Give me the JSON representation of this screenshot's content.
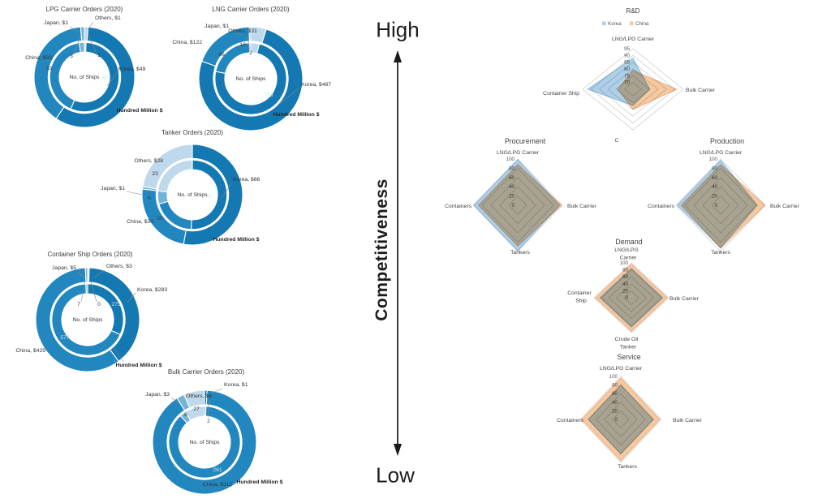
{
  "annotations": {
    "high": "High",
    "low": "Low",
    "competitiveness": "Competitiveness"
  },
  "colors": {
    "korea_sector": "#1478b2",
    "china_sector": "#2387bf",
    "japan_sector": "#74b3d8",
    "others_sector": "#bfd8eb",
    "radar_korea": "#aecfe8",
    "radar_china": "#f6c8a0",
    "arrow": "#1a1a1a"
  },
  "chart_data": [
    {
      "type": "donut",
      "id": "lpg",
      "title": "LPG Carrier Orders (2020)",
      "center_label": "No. of Ships",
      "unit_label": "Hundred Million $",
      "rings": [
        "outer = Hundred Million $",
        "inner = No. of Ships"
      ],
      "segments": [
        {
          "name": "Others",
          "label": "Others, $1",
          "hundred_million_usd": 1,
          "ships": 1
        },
        {
          "name": "Korea",
          "label": "Korea, $49",
          "hundred_million_usd": 49,
          "ships": 69
        },
        {
          "name": "China",
          "label": "China, $33",
          "hundred_million_usd": 33,
          "ships": 51
        },
        {
          "name": "Japan",
          "label": "Japan, $1",
          "hundred_million_usd": 1,
          "ships": 3
        }
      ]
    },
    {
      "type": "donut",
      "id": "lng",
      "title": "LNG Carrier Orders (2020)",
      "center_label": "No. of Ships",
      "unit_label": "Hundred Million $",
      "rings": [
        "outer = Hundred Million $",
        "inner = No. of Ships"
      ],
      "segments": [
        {
          "name": "Others",
          "label": "Others, $31",
          "hundred_million_usd": 31,
          "ships": 12
        },
        {
          "name": "Korea",
          "label": "Korea, $487",
          "hundred_million_usd": 487,
          "ships": 233
        },
        {
          "name": "China",
          "label": "China, $122",
          "hundred_million_usd": 122,
          "ships": 66
        },
        {
          "name": "Japan",
          "label": "Japan, $1",
          "hundred_million_usd": 1,
          "ships": 2
        }
      ]
    },
    {
      "type": "donut",
      "id": "tanker",
      "title": "Tanker Orders (2020)",
      "center_label": "No. of Ships",
      "unit_label": "Hundred Million $",
      "rings": [
        "outer = Hundred Million $",
        "inner = No. of Ships"
      ],
      "segments": [
        {
          "name": "Korea",
          "label": "Korea, $66",
          "hundred_million_usd": 66,
          "ships": 50
        },
        {
          "name": "China",
          "label": "China, $30",
          "hundred_million_usd": 30,
          "ships": 20
        },
        {
          "name": "Japan",
          "label": "Japan, $1",
          "hundred_million_usd": 1,
          "ships": 6
        },
        {
          "name": "Others",
          "label": "Others, $28",
          "hundred_million_usd": 28,
          "ships": 23
        }
      ]
    },
    {
      "type": "donut",
      "id": "container",
      "title": "Container Ship Orders (2020)",
      "center_label": "No. of Ships",
      "unit_label": "Hundred Million $",
      "rings": [
        "outer = Hundred Million $",
        "inner = No. of Ships"
      ],
      "segments": [
        {
          "name": "Others",
          "label": "Others, $3",
          "hundred_million_usd": 3,
          "ships": 0
        },
        {
          "name": "Korea",
          "label": "Korea, $283",
          "hundred_million_usd": 283,
          "ships": 273
        },
        {
          "name": "China",
          "label": "China, $429",
          "hundred_million_usd": 429,
          "ships": 577
        },
        {
          "name": "Japan",
          "label": "Japan, $5",
          "hundred_million_usd": 5,
          "ships": 7
        }
      ]
    },
    {
      "type": "donut",
      "id": "bulk",
      "title": "Bulk Carrier Orders (2020)",
      "center_label": "No. of Ships",
      "unit_label": "Hundred Million $",
      "rings": [
        "outer = Hundred Million $",
        "inner = No. of Ships"
      ],
      "segments": [
        {
          "name": "Korea",
          "label": "Korea, $1",
          "hundred_million_usd": 1,
          "ships": 2
        },
        {
          "name": "China",
          "label": "China, $112",
          "hundred_million_usd": 112,
          "ships": 261
        },
        {
          "name": "Japan",
          "label": "Japan, $3",
          "hundred_million_usd": 3,
          "ships": 8
        },
        {
          "name": "Others",
          "label": "Others, $8",
          "hundred_million_usd": 8,
          "ships": 27
        }
      ]
    },
    {
      "type": "radar",
      "id": "rnd",
      "title": "R&D",
      "legend": [
        {
          "name": "Korea"
        },
        {
          "name": "China"
        }
      ],
      "axes": [
        "LNG/LPG Carrier",
        "Bulk Carrier",
        "C",
        "Container Ship"
      ],
      "ticks": [
        95,
        90,
        85,
        80,
        75,
        70
      ],
      "scale": {
        "min": 65,
        "max": 95
      },
      "series": [
        {
          "name": "Korea",
          "values": [
            88,
            75,
            77,
            92
          ]
        },
        {
          "name": "China",
          "values": [
            79,
            91,
            80,
            74
          ]
        }
      ]
    },
    {
      "type": "radar",
      "id": "procurement",
      "title": "Procurement",
      "axes": [
        "LNG/LPG Carrier",
        "Bulk Carrier",
        "Tankers",
        "Containers"
      ],
      "ticks": [
        100,
        80,
        60,
        40,
        20,
        0
      ],
      "scale": {
        "min": 0,
        "max": 100
      },
      "series": [
        {
          "name": "Korea",
          "values": [
            98,
            94,
            98,
            98
          ]
        },
        {
          "name": "China",
          "values": [
            88,
            98,
            88,
            88
          ]
        }
      ]
    },
    {
      "type": "radar",
      "id": "production",
      "title": "Production",
      "axes": [
        "LNG/LPG Carrier",
        "Bulk Carrier",
        "Tankers",
        "Containers"
      ],
      "ticks": [
        100,
        80,
        60,
        40,
        20,
        0
      ],
      "scale": {
        "min": 0,
        "max": 100
      },
      "series": [
        {
          "name": "Korea",
          "values": [
            97,
            82,
            92,
            97
          ]
        },
        {
          "name": "China",
          "values": [
            88,
            99,
            93,
            88
          ]
        }
      ]
    },
    {
      "type": "radar",
      "id": "demand",
      "title": "Demand",
      "axes": [
        "LNG/LPG Carrier",
        "Bulk Carrier",
        "Crude Oil Tanker",
        "Container Ship"
      ],
      "ticks": [
        100,
        80,
        60,
        40,
        20,
        0
      ],
      "scale": {
        "min": 0,
        "max": 100
      },
      "series": [
        {
          "name": "Korea",
          "values": [
            84,
            84,
            84,
            84
          ]
        },
        {
          "name": "China",
          "values": [
            96,
            96,
            96,
            96
          ]
        }
      ]
    },
    {
      "type": "radar",
      "id": "service",
      "title": "Service",
      "axes": [
        "LNG/LPG Carrier",
        "Bulk Carrier",
        "Tankers",
        "Containers"
      ],
      "ticks": [
        100,
        80,
        60,
        40,
        20,
        0
      ],
      "scale": {
        "min": 0,
        "max": 100
      },
      "series": [
        {
          "name": "Korea",
          "values": [
            80,
            80,
            80,
            80
          ]
        },
        {
          "name": "China",
          "values": [
            96,
            96,
            96,
            96
          ]
        }
      ]
    }
  ]
}
